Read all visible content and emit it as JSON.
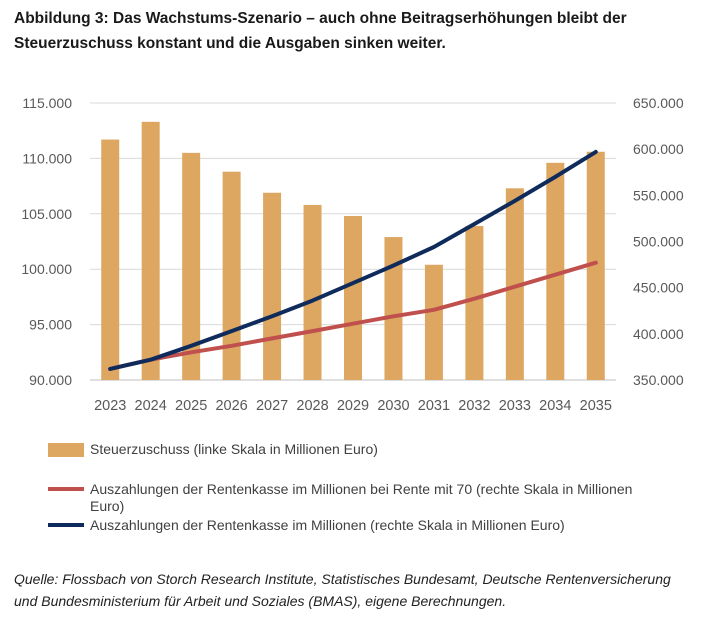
{
  "title": "Abbildung 3: Das Wachstums-Szenario – auch ohne Beitragserhöhungen bleibt der Steuerzuschuss konstant und die Ausgaben sinken weiter.",
  "source": "Quelle: Flossbach von Storch Research Institute, Statistisches Bundesamt, Deutsche Rentenversicherung und Bundesministerium für Arbeit und Soziales (BMAS), eigene Berechnungen.",
  "colors": {
    "bar": "#DDA762",
    "red": "#C0504D",
    "navy": "#0F2B5C",
    "grid": "#D9D9D9",
    "axis": "#595959"
  },
  "legend": {
    "bar": "Steuerzuschuss (linke Skala in Millionen Euro)",
    "red": "Auszahlungen der Rentenkasse im Millionen bei Rente mit 70  (rechte Skala in Millionen Euro)",
    "navy": "Auszahlungen der Rentenkasse im Millionen (rechte Skala in Millionen Euro)"
  },
  "chart_data": {
    "type": "bar+line",
    "categories": [
      "2023",
      "2024",
      "2025",
      "2026",
      "2027",
      "2028",
      "2029",
      "2030",
      "2031",
      "2032",
      "2033",
      "2034",
      "2035"
    ],
    "left_axis": {
      "min": 90000,
      "max": 115000,
      "ticks": [
        "90.000",
        "95.000",
        "100.000",
        "105.000",
        "110.000",
        "115.000"
      ]
    },
    "right_axis": {
      "min": 350000,
      "max": 650000,
      "ticks": [
        "350.000",
        "400.000",
        "450.000",
        "500.000",
        "550.000",
        "600.000",
        "650.000"
      ]
    },
    "series": [
      {
        "name": "Steuerzuschuss (linke Skala in Millionen Euro)",
        "kind": "bar",
        "axis": "left",
        "values": [
          111700,
          113300,
          110500,
          108800,
          106900,
          105800,
          104800,
          102900,
          100400,
          103900,
          107300,
          109600,
          110600
        ]
      },
      {
        "name": "Auszahlungen der Rentenkasse im Millionen bei Rente mit 70  (rechte Skala in Millionen Euro)",
        "kind": "line",
        "axis": "right",
        "color_key": "red",
        "values": [
          362000,
          372000,
          380000,
          387000,
          395000,
          403000,
          411000,
          419000,
          426000,
          438000,
          451000,
          464000,
          477000
        ]
      },
      {
        "name": "Auszahlungen der Rentenkasse im Millionen (rechte Skala in Millionen Euro)",
        "kind": "line",
        "axis": "right",
        "color_key": "navy",
        "values": [
          362000,
          372000,
          387000,
          403000,
          419000,
          436000,
          455000,
          474000,
          494000,
          519000,
          544000,
          570000,
          597000
        ]
      }
    ]
  }
}
